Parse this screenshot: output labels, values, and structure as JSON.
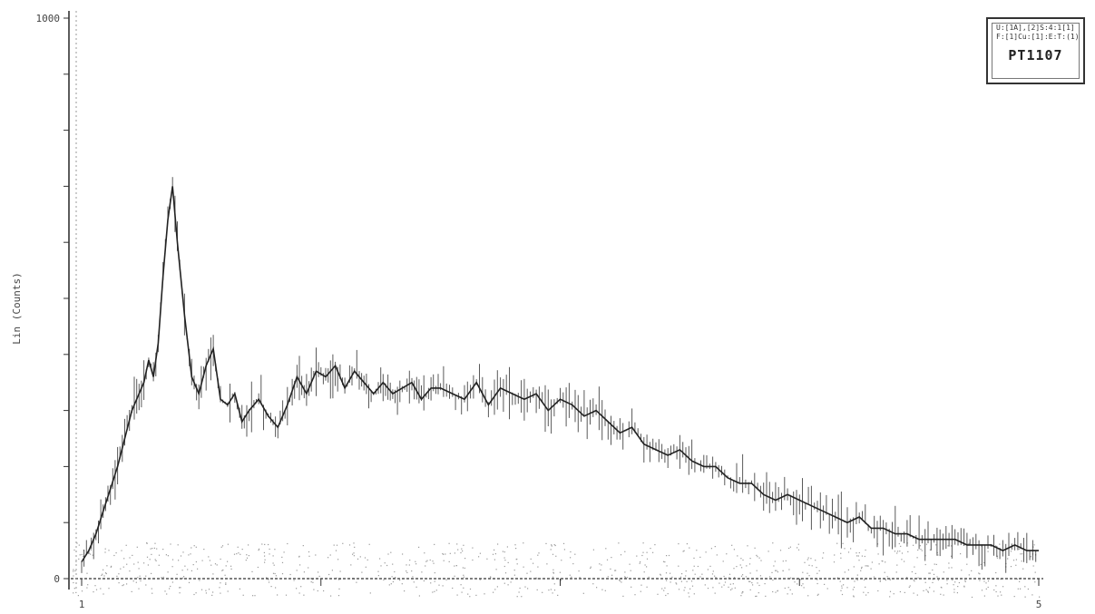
{
  "chart_data": {
    "type": "line",
    "title": "",
    "xlabel": "",
    "ylabel": "Lin (Counts)",
    "xlim": [
      1,
      5
    ],
    "ylim": [
      0,
      1000
    ],
    "x_ticks": [
      "1",
      "",
      "",
      "",
      "5"
    ],
    "y_ticks": [
      "0",
      "",
      "",
      "",
      "",
      "",
      "",
      "",
      "",
      "",
      "1000"
    ],
    "grid": false,
    "colors": {
      "line": "#222222",
      "axis": "#333333",
      "noise": "#9a9a9a"
    },
    "series": [
      {
        "x": [
          1.0,
          1.03,
          1.06,
          1.09,
          1.12,
          1.15,
          1.18,
          1.21,
          1.24,
          1.26,
          1.28,
          1.3,
          1.32,
          1.34,
          1.36,
          1.38,
          1.4,
          1.43,
          1.46,
          1.49,
          1.52,
          1.55,
          1.58,
          1.61,
          1.64,
          1.67,
          1.7,
          1.74,
          1.78,
          1.82,
          1.86,
          1.9,
          1.94,
          1.98,
          2.02,
          2.06,
          2.1,
          2.14,
          2.18,
          2.22,
          2.26,
          2.3,
          2.34,
          2.38,
          2.42,
          2.46,
          2.5,
          2.55,
          2.6,
          2.65,
          2.7,
          2.75,
          2.8,
          2.85,
          2.9,
          2.95,
          3.0,
          3.05,
          3.1,
          3.15,
          3.2,
          3.25,
          3.3,
          3.35,
          3.4,
          3.45,
          3.5,
          3.55,
          3.6,
          3.65,
          3.7,
          3.75,
          3.8,
          3.85,
          3.9,
          3.95,
          4.0,
          4.05,
          4.1,
          4.15,
          4.2,
          4.25,
          4.3,
          4.35,
          4.4,
          4.45,
          4.5,
          4.55,
          4.6,
          4.65,
          4.7,
          4.75,
          4.8,
          4.85,
          4.9,
          4.95,
          5.0
        ],
        "y": [
          30,
          50,
          80,
          120,
          160,
          200,
          250,
          300,
          330,
          350,
          390,
          360,
          420,
          540,
          640,
          700,
          600,
          470,
          360,
          330,
          380,
          410,
          320,
          310,
          330,
          280,
          300,
          320,
          290,
          270,
          310,
          360,
          330,
          370,
          360,
          380,
          340,
          370,
          350,
          330,
          350,
          330,
          340,
          350,
          320,
          340,
          340,
          330,
          320,
          350,
          310,
          340,
          330,
          320,
          330,
          300,
          320,
          310,
          290,
          300,
          280,
          260,
          270,
          240,
          230,
          220,
          230,
          210,
          200,
          200,
          180,
          170,
          170,
          150,
          140,
          150,
          140,
          130,
          120,
          110,
          100,
          110,
          90,
          90,
          80,
          80,
          70,
          70,
          70,
          70,
          60,
          60,
          60,
          50,
          60,
          50,
          50
        ]
      }
    ]
  },
  "legend": {
    "line1": "U:[1A],[2]S:4:1[1]",
    "line2": "F:[1]Cu:[1]:E:T:(1)",
    "sample_id": "PT1107"
  }
}
